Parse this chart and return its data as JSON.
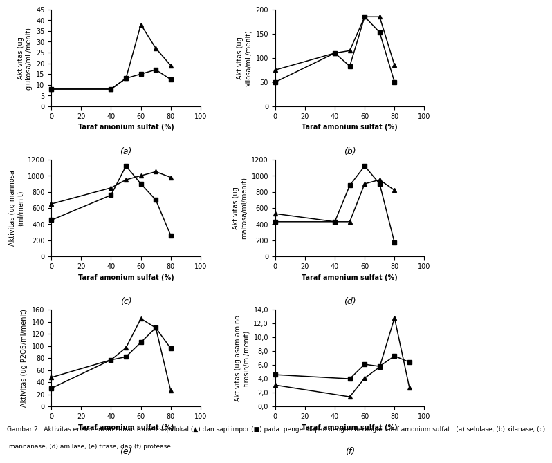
{
  "panels": [
    {
      "label": "(a)",
      "ylabel": "Aktivitas (ug\nglukosa/mL/menit)",
      "ylim": [
        0,
        45
      ],
      "yticks": [
        0,
        5,
        10,
        15,
        20,
        25,
        30,
        35,
        40,
        45
      ],
      "triangle_x": [
        0,
        40,
        50,
        60,
        70,
        80
      ],
      "triangle_y": [
        8,
        8,
        13,
        38,
        27,
        19
      ],
      "square_x": [
        0,
        40,
        50,
        60,
        70,
        80
      ],
      "square_y": [
        8,
        8,
        13,
        15,
        17,
        12.5
      ]
    },
    {
      "label": "(b)",
      "ylabel": "Aktivitas (ug\nxilosa/mL/menit)",
      "ylim": [
        0,
        200
      ],
      "yticks": [
        0,
        50,
        100,
        150,
        200
      ],
      "triangle_x": [
        0,
        40,
        50,
        60,
        70,
        80
      ],
      "triangle_y": [
        75,
        110,
        115,
        185,
        185,
        85
      ],
      "square_x": [
        0,
        40,
        50,
        60,
        70,
        80
      ],
      "square_y": [
        50,
        110,
        83,
        185,
        153,
        50
      ]
    },
    {
      "label": "(c)",
      "ylabel": "Aktivitas (ug mannosa\n(ml/menit)",
      "ylim": [
        0,
        1200
      ],
      "yticks": [
        0,
        200,
        400,
        600,
        800,
        1000,
        1200
      ],
      "triangle_x": [
        0,
        40,
        50,
        60,
        70,
        80
      ],
      "triangle_y": [
        650,
        850,
        950,
        1000,
        1050,
        980
      ],
      "square_x": [
        0,
        40,
        50,
        60,
        70,
        80
      ],
      "square_y": [
        450,
        760,
        1120,
        900,
        700,
        260
      ]
    },
    {
      "label": "(d)",
      "ylabel": "Aktivitas (ug\nmaltosa/ml/menit)",
      "ylim": [
        0,
        1200
      ],
      "yticks": [
        0,
        200,
        400,
        600,
        800,
        1000,
        1200
      ],
      "triangle_x": [
        0,
        40,
        50,
        60,
        70,
        80
      ],
      "triangle_y": [
        530,
        430,
        430,
        900,
        950,
        820
      ],
      "square_x": [
        0,
        40,
        50,
        60,
        70,
        80
      ],
      "square_y": [
        430,
        430,
        880,
        1120,
        900,
        170
      ]
    },
    {
      "label": "(e)",
      "ylabel": "Aktivitas (ug P2O5/ml/menit)",
      "ylim": [
        0,
        160
      ],
      "yticks": [
        0,
        20,
        40,
        60,
        80,
        100,
        120,
        140,
        160
      ],
      "triangle_x": [
        0,
        40,
        50,
        60,
        70,
        80
      ],
      "triangle_y": [
        48,
        77,
        97,
        145,
        130,
        26
      ],
      "square_x": [
        0,
        40,
        50,
        60,
        70,
        80
      ],
      "square_y": [
        30,
        77,
        82,
        106,
        130,
        96
      ]
    },
    {
      "label": "(f)",
      "ylabel": "Aktivitas (ug asam amino\ntirosin/ml/menit)",
      "ylim": [
        0.0,
        14.0
      ],
      "yticks": [
        0.0,
        2.0,
        4.0,
        6.0,
        8.0,
        10.0,
        12.0,
        14.0
      ],
      "ytick_labels": [
        "0,0",
        "2,0",
        "4,0",
        "6,0",
        "8,0",
        "10,0",
        "12,0",
        "14,0"
      ],
      "triangle_x": [
        0,
        50,
        60,
        70,
        80,
        90
      ],
      "triangle_y": [
        3.1,
        1.4,
        4.1,
        5.7,
        12.8,
        2.7
      ],
      "square_x": [
        0,
        50,
        60,
        70,
        80,
        90
      ],
      "square_y": [
        4.6,
        4.0,
        6.1,
        5.8,
        7.3,
        6.4
      ]
    }
  ],
  "xlabel": "Taraf amonium sulfat (%)",
  "xlim": [
    0,
    100
  ],
  "xticks": [
    0,
    20,
    40,
    60,
    80,
    100
  ],
  "line_color": "#000000",
  "marker_triangle": "^",
  "marker_square": "s",
  "markersize": 4.5,
  "linewidth": 1.1,
  "caption_line1": "Gambar 2.  Aktivitas enzim-enzim cairan rumen sapi lokal (▲) dan sapi impor (■) pada  pengendapan dengan berbagai taraf amonium sulfat : (a) selulase, (b) xilanase, (c)",
  "caption_line2": " mannanase, (d) amilase, (e) fitase, dan (f) protease"
}
